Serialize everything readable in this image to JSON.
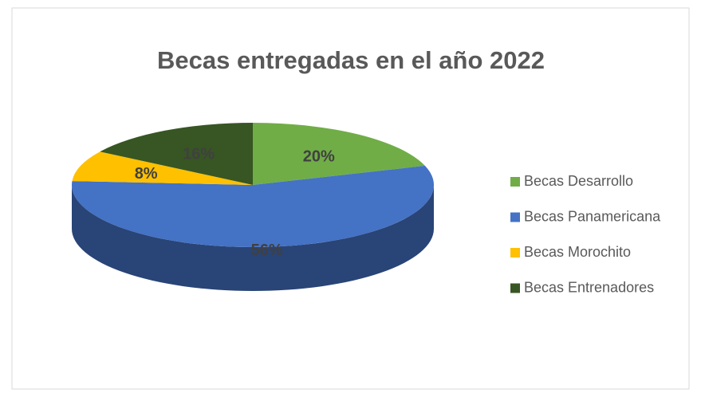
{
  "chart_data": {
    "type": "pie3d",
    "title": "Becas entregadas en el año 2022",
    "categories": [
      "Becas Desarrollo",
      "Becas Panamericana",
      "Becas Morochito",
      "Becas Entrenadores"
    ],
    "values": [
      20,
      56,
      8,
      16
    ],
    "value_labels": [
      "20%",
      "56%",
      "8%",
      "16%"
    ],
    "colors": [
      "#70ad47",
      "#4472c4",
      "#ffc000",
      "#375623"
    ],
    "legend": "right"
  }
}
